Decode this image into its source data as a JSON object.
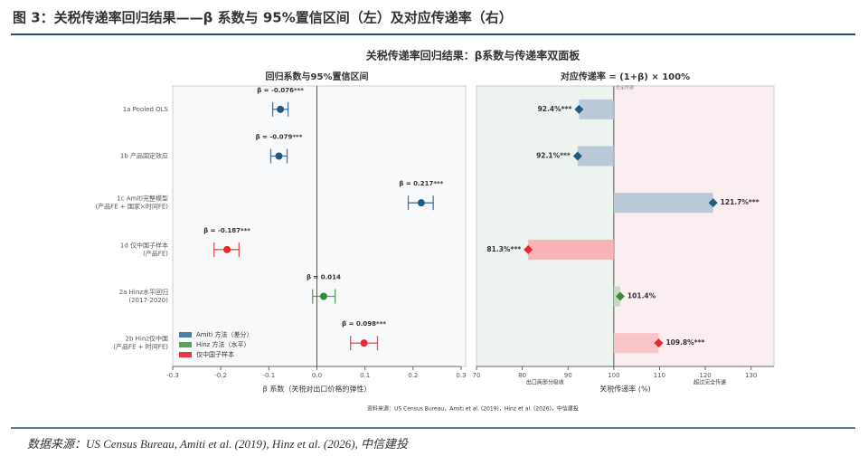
{
  "figure_title": "图 3：关税传递率回归结果——β 系数与 95%置信区间（左）及对应传递率（右）",
  "suptitle": "关税传递率回归结果：β系数与传递率双面板",
  "note": "资料来源：US Census Bureau，Amiti et al. (2019)，Hinz et al. (2026)，中信建投",
  "source": "数据来源：US Census Bureau, Amiti et al. (2019), Hinz et al. (2026), 中信建投",
  "chart_data": [
    {
      "type": "forest",
      "title": "回归系数与95%置信区间",
      "xlabel": "β 系数（关税对出口价格的弹性）",
      "categories": [
        [
          "1a Pooled OLS"
        ],
        [
          "1b 产品固定效应"
        ],
        [
          "1c Amiti完整模型",
          "(产品FE + 国家×时间FE)"
        ],
        [
          "1d 仅中国子样本",
          "(产品FE)"
        ],
        [
          "2a Hinz水平回归",
          "(2017-2020)"
        ],
        [
          "2b Hinz仅中国",
          "(产品FE + 时间FE)"
        ]
      ],
      "values": [
        -0.076,
        -0.079,
        0.217,
        -0.187,
        0.014,
        0.098
      ],
      "value_labels": [
        "β = -0.076***",
        "β = -0.079***",
        "β = 0.217***",
        "β = -0.187***",
        "β = 0.014",
        "β = 0.098***"
      ],
      "ci": [
        [
          -0.092,
          -0.06
        ],
        [
          -0.096,
          -0.062
        ],
        [
          0.19,
          0.242
        ],
        [
          -0.214,
          -0.162
        ],
        [
          -0.009,
          0.038
        ],
        [
          0.07,
          0.126
        ]
      ],
      "colors": [
        "#1f5a85",
        "#1f5a85",
        "#1f5a85",
        "#e8282d",
        "#3a8a3a",
        "#e8282d"
      ],
      "legend": [
        {
          "name": "Amiti 方法（差分）",
          "color": "#4a7fa6"
        },
        {
          "name": "Hinz 方法（水平）",
          "color": "#5fa05f"
        },
        {
          "name": "仅中国子样本",
          "color": "#e8373c"
        }
      ],
      "xlim": [
        -0.3,
        0.3
      ],
      "xticks": [
        -0.3,
        -0.2,
        -0.1,
        {
          "value": 0,
          "label": "0.0"
        },
        0.1,
        0.2,
        0.3
      ]
    },
    {
      "type": "hbar",
      "title": "对应传递率 = (1+β) × 100%",
      "xlabel": "关税传递率 (%)",
      "values": [
        92.4,
        92.1,
        121.7,
        81.3,
        101.4,
        109.8
      ],
      "value_labels": [
        "92.4%***",
        "92.1%***",
        "121.7%***",
        "81.3%***",
        "101.4%",
        "109.8%***"
      ],
      "base": 100,
      "base_label": "完全传递",
      "bar_colors": [
        "#b9c9d7",
        "#b9c9d7",
        "#b9c9d7",
        "#f7b3b6",
        "#c6dbc4",
        "#f9c4c7"
      ],
      "marker_colors": [
        "#1f5a85",
        "#1f5a85",
        "#1f5a85",
        "#e8282d",
        "#3a8a3a",
        "#e8282d"
      ],
      "annotations": [
        {
          "text": "出口商部分吸收",
          "x": 85,
          "color": "#3a8a3a"
        },
        {
          "text": "超过完全传递",
          "x": 121,
          "color": "#e8282d"
        }
      ],
      "xlim": [
        70,
        135
      ],
      "xticks": [
        70,
        80,
        90,
        100,
        110,
        120,
        130
      ]
    }
  ]
}
